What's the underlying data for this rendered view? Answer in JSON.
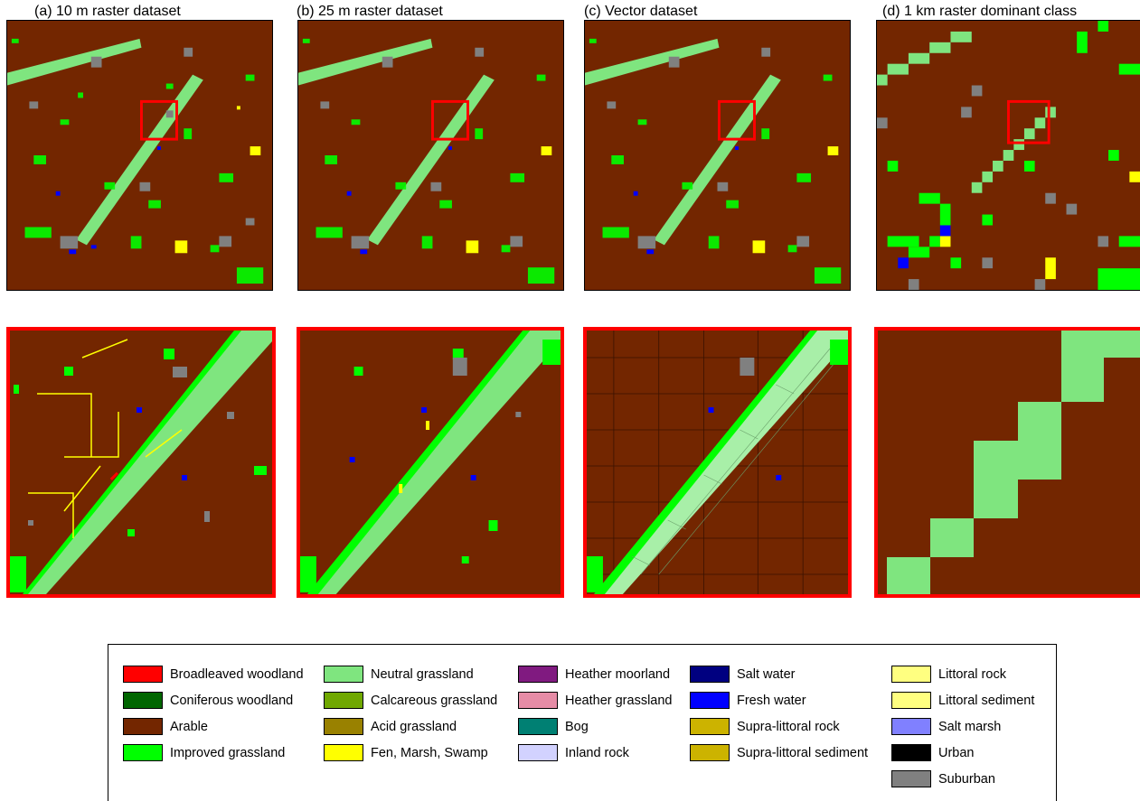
{
  "panels": [
    {
      "title": "(a) 10 m raster dataset"
    },
    {
      "title": "(b) 25 m raster dataset"
    },
    {
      "title": "(c) Vector dataset"
    },
    {
      "title": "(d) 1 km raster dominant class"
    }
  ],
  "legend": {
    "columns": [
      [
        {
          "label": "Broadleaved woodland",
          "color": "#ff0000"
        },
        {
          "label": "Coniferous woodland",
          "color": "#006600"
        },
        {
          "label": "Arable",
          "color": "#732600"
        },
        {
          "label": "Improved grassland",
          "color": "#00ff00"
        }
      ],
      [
        {
          "label": "Neutral grassland",
          "color": "#7fe57f"
        },
        {
          "label": "Calcareous grassland",
          "color": "#70a800"
        },
        {
          "label": "Acid grassland",
          "color": "#998100"
        },
        {
          "label": "Fen, Marsh, Swamp",
          "color": "#ffff00"
        }
      ],
      [
        {
          "label": "Heather moorland",
          "color": "#801a80"
        },
        {
          "label": "Heather grassland",
          "color": "#e68ca6"
        },
        {
          "label": "Bog",
          "color": "#008073"
        },
        {
          "label": "Inland rock",
          "color": "#d2d2ff"
        }
      ],
      [
        {
          "label": "Salt water",
          "color": "#000080"
        },
        {
          "label": "Fresh water",
          "color": "#0000ff"
        },
        {
          "label": "Supra-littoral rock",
          "color": "#ccb300"
        },
        {
          "label": "Supra-littoral sediment",
          "color": "#ccb300"
        }
      ],
      [
        {
          "label": "Littoral rock",
          "color": "#ffff80"
        },
        {
          "label": "Littoral sediment",
          "color": "#ffff80"
        },
        {
          "label": "Salt marsh",
          "color": "#8080ff"
        },
        {
          "label": "Urban",
          "color": "#000000"
        },
        {
          "label": "Suburban",
          "color": "#808080"
        }
      ]
    ]
  }
}
